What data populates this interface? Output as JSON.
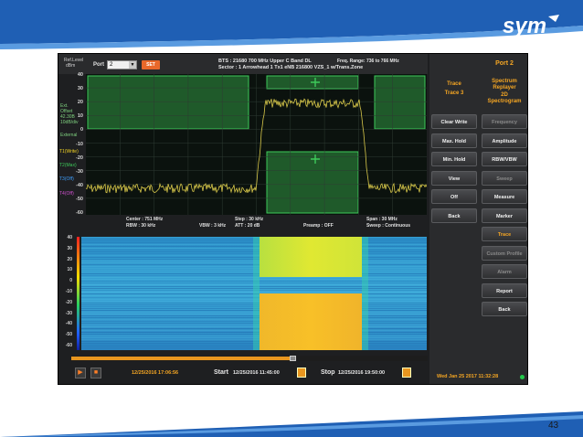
{
  "slide": {
    "page_number": "43",
    "logo_text": "sym"
  },
  "topbar": {
    "ref_level_label": "Ref.Level",
    "ref_level_unit": "dBm",
    "port_label": "Port",
    "port_value": "2",
    "set_label": "SET",
    "bts_line1": "BTS : 21680   700 MHz Upper C Band DL",
    "bts_line2": "Sector : 1      Arrowhead 1 Tx1 eNB 216800 VZS_1 w/Trans.Zone",
    "freq_range": "Freq. Range:  736 to 766 MHz"
  },
  "spectrum": {
    "y_ticks": [
      "40",
      "30",
      "20",
      "10",
      "0",
      "-10",
      "-20",
      "-30",
      "-40",
      "-50",
      "-60"
    ],
    "legend": {
      "att_line1": "Ext.",
      "att_line2": "Offset",
      "att_line3": "42.30B",
      "att_line4": "10dB/div",
      "att_line5": "External",
      "t1": "T1(Write)",
      "t2": "T2(Max)",
      "t3": "T3(Off)",
      "t4": "T4(Off)"
    }
  },
  "info": {
    "center": "Center : 751 MHz",
    "rbw": "RBW : 30 kHz",
    "vbw": "VBW : 3 kHz",
    "step": "Step : 30 kHz",
    "att": "ATT : 20 dB",
    "preamp": "Preamp : OFF",
    "span": "Span : 30 MHz",
    "sweep": "Sweep : Continuous"
  },
  "spectrogram": {
    "y_ticks": [
      "40",
      "30",
      "20",
      "10",
      "0",
      "-10",
      "-20",
      "-30",
      "-40",
      "-50",
      "-60"
    ]
  },
  "playback": {
    "progress": 0.62,
    "current_time": "12/25/2016 17:06:56",
    "start_label": "Start",
    "start_time": "12/25/2016 11:45:00",
    "stop_label": "Stop",
    "stop_time": "12/25/2016 19:50:00"
  },
  "right_panel": {
    "header": "Port 2",
    "col1_title_line1": "Trace",
    "col1_title_line2": "Trace 3",
    "col2_title_line1": "Spectrum",
    "col2_title_line2": "Replayer",
    "col2_title_line3": "2D",
    "col2_title_line4": "Spectrogram",
    "left_buttons": [
      "Clear Write",
      "Max. Hold",
      "Min. Hold",
      "View",
      "Off",
      "Back"
    ],
    "right_buttons": [
      "Frequency",
      "Amplitude",
      "RBW/VBW",
      "Sweep",
      "Measure",
      "Marker",
      "Trace",
      "Custom Profile",
      "Alarm",
      "Report",
      "Back"
    ],
    "datetime": "Wed Jan 25 2017 11:32:28"
  },
  "colors": {
    "accent_orange": "#f5a623",
    "brand_blue": "#1f5fb4",
    "trace_yellow": "#d8c84a",
    "mask_green": "#1f5a2a"
  }
}
